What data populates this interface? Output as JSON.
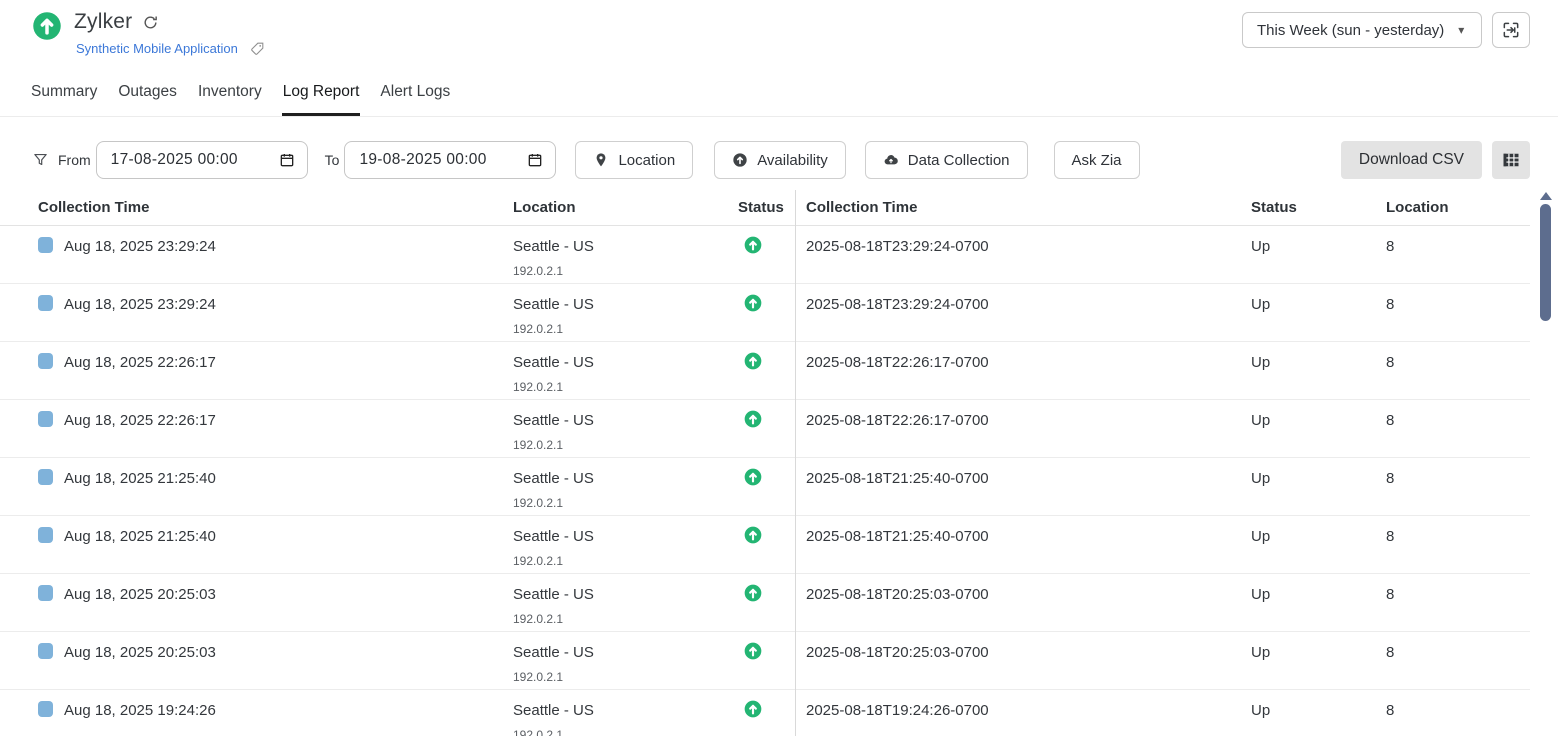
{
  "colors": {
    "status_up": "#23b573",
    "link": "#3c78d8",
    "checkbox": "#7fb2da",
    "scrollbar": "#5d6d8e"
  },
  "header": {
    "title": "Zylker",
    "subtitle": "Synthetic Mobile Application",
    "period_selector": "This Week (sun - yesterday)"
  },
  "tabs": [
    {
      "label": "Summary",
      "active": false
    },
    {
      "label": "Outages",
      "active": false
    },
    {
      "label": "Inventory",
      "active": false
    },
    {
      "label": "Log Report",
      "active": true
    },
    {
      "label": "Alert Logs",
      "active": false
    }
  ],
  "filter_bar": {
    "from_label": "From",
    "from_value": "17-08-2025 00:00",
    "to_label": "To",
    "to_value": "19-08-2025 00:00",
    "location_button": "Location",
    "availability_button": "Availability",
    "data_collection_button": "Data Collection",
    "ask_zia_button": "Ask Zia",
    "download_csv_button": "Download CSV"
  },
  "table": {
    "left_headers": {
      "collection_time": "Collection Time",
      "location": "Location",
      "status": "Status"
    },
    "right_headers": {
      "collection_time": "Collection Time",
      "status": "Status",
      "location": "Location"
    },
    "rows": [
      {
        "collection_time": "Aug 18, 2025 23:29:24",
        "location": "Seattle - US",
        "ip": "192.0.2.1",
        "iso_time": "2025-08-18T23:29:24-0700",
        "status": "Up",
        "location_count": "8"
      },
      {
        "collection_time": "Aug 18, 2025 23:29:24",
        "location": "Seattle - US",
        "ip": "192.0.2.1",
        "iso_time": "2025-08-18T23:29:24-0700",
        "status": "Up",
        "location_count": "8"
      },
      {
        "collection_time": "Aug 18, 2025 22:26:17",
        "location": "Seattle - US",
        "ip": "192.0.2.1",
        "iso_time": "2025-08-18T22:26:17-0700",
        "status": "Up",
        "location_count": "8"
      },
      {
        "collection_time": "Aug 18, 2025 22:26:17",
        "location": "Seattle - US",
        "ip": "192.0.2.1",
        "iso_time": "2025-08-18T22:26:17-0700",
        "status": "Up",
        "location_count": "8"
      },
      {
        "collection_time": "Aug 18, 2025 21:25:40",
        "location": "Seattle - US",
        "ip": "192.0.2.1",
        "iso_time": "2025-08-18T21:25:40-0700",
        "status": "Up",
        "location_count": "8"
      },
      {
        "collection_time": "Aug 18, 2025 21:25:40",
        "location": "Seattle - US",
        "ip": "192.0.2.1",
        "iso_time": "2025-08-18T21:25:40-0700",
        "status": "Up",
        "location_count": "8"
      },
      {
        "collection_time": "Aug 18, 2025 20:25:03",
        "location": "Seattle - US",
        "ip": "192.0.2.1",
        "iso_time": "2025-08-18T20:25:03-0700",
        "status": "Up",
        "location_count": "8"
      },
      {
        "collection_time": "Aug 18, 2025 20:25:03",
        "location": "Seattle - US",
        "ip": "192.0.2.1",
        "iso_time": "2025-08-18T20:25:03-0700",
        "status": "Up",
        "location_count": "8"
      },
      {
        "collection_time": "Aug 18, 2025 19:24:26",
        "location": "Seattle - US",
        "ip": "192.0.2.1",
        "iso_time": "2025-08-18T19:24:26-0700",
        "status": "Up",
        "location_count": "8"
      }
    ]
  }
}
